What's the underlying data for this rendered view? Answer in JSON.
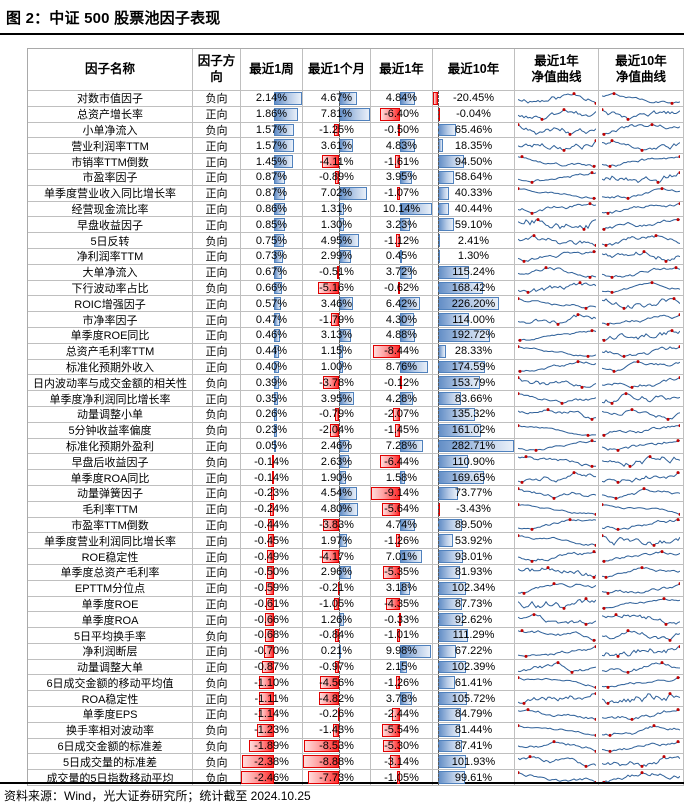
{
  "title": "图 2：中证 500 股票池因子表现",
  "source_note": "资料来源：Wind，光大证券研究所；统计截至 2024.10.25",
  "colors": {
    "bar_positive": "#638EC6",
    "bar_negative": "#FF2B2B",
    "sparkline_line": "#2E6099",
    "sparkline_marker": "#C00000",
    "grid_border": "#BFBFBF"
  },
  "chart_data": {
    "type": "table",
    "columns": [
      "因子名称",
      "因子方向",
      "最近1周",
      "最近1个月",
      "最近1年",
      "最近10年",
      "最近1年净值曲线",
      "最近10年净值曲线"
    ],
    "value_unit": "%",
    "rows": [
      [
        "对数市值因子",
        "负向",
        2.14,
        4.67,
        4.84,
        -20.45
      ],
      [
        "总资产增长率",
        "正向",
        1.86,
        7.81,
        -6.4,
        -0.04
      ],
      [
        "小单净流入",
        "负向",
        1.57,
        -1.25,
        -0.5,
        65.46
      ],
      [
        "营业利润率TTM",
        "正向",
        1.57,
        3.61,
        4.83,
        18.35
      ],
      [
        "市销率TTM倒数",
        "正向",
        1.45,
        -4.11,
        -1.61,
        94.5
      ],
      [
        "市盈率因子",
        "正向",
        0.87,
        -0.89,
        3.95,
        58.64
      ],
      [
        "单季度营业收入同比增长率",
        "正向",
        0.87,
        7.02,
        -1.07,
        40.33
      ],
      [
        "经营现金流比率",
        "正向",
        0.86,
        1.31,
        10.14,
        40.44
      ],
      [
        "早盘收益因子",
        "正向",
        0.85,
        1.3,
        3.23,
        59.1
      ],
      [
        "5日反转",
        "负向",
        0.75,
        4.95,
        -1.12,
        2.41
      ],
      [
        "净利润率TTM",
        "正向",
        0.73,
        2.99,
        0.45,
        1.3
      ],
      [
        "大单净流入",
        "正向",
        0.67,
        -0.51,
        3.72,
        115.24
      ],
      [
        "下行波动率占比",
        "负向",
        0.66,
        -5.16,
        -0.62,
        168.42
      ],
      [
        "ROIC增强因子",
        "正向",
        0.57,
        3.46,
        6.42,
        226.2
      ],
      [
        "市净率因子",
        "正向",
        0.47,
        -1.79,
        4.3,
        114.0
      ],
      [
        "单季度ROE同比",
        "正向",
        0.46,
        3.13,
        4.88,
        192.72
      ],
      [
        "总资产毛利率TTM",
        "正向",
        0.44,
        1.15,
        -8.44,
        28.33
      ],
      [
        "标准化预期外收入",
        "正向",
        0.4,
        1.0,
        8.76,
        174.59
      ],
      [
        "日内波动率与成交金额的相关性",
        "负向",
        0.39,
        -3.78,
        -0.12,
        153.79
      ],
      [
        "单季度净利润同比增长率",
        "正向",
        0.35,
        3.95,
        4.28,
        83.66
      ],
      [
        "动量调整小单",
        "负向",
        0.26,
        -0.79,
        -2.07,
        135.32
      ],
      [
        "5分钟收益率偏度",
        "负向",
        0.23,
        -2.04,
        -1.45,
        161.02
      ],
      [
        "标准化预期外盈利",
        "正向",
        0.05,
        2.46,
        7.28,
        282.71
      ],
      [
        "早盘后收益因子",
        "负向",
        -0.14,
        2.63,
        -6.44,
        110.9
      ],
      [
        "单季度ROA同比",
        "正向",
        -0.14,
        1.9,
        1.58,
        169.65
      ],
      [
        "动量弹簧因子",
        "正向",
        -0.23,
        4.54,
        -9.14,
        73.77
      ],
      [
        "毛利率TTM",
        "正向",
        -0.24,
        4.8,
        -5.64,
        -3.43
      ],
      [
        "市盈率TTM倒数",
        "正向",
        -0.44,
        -3.83,
        4.74,
        89.5
      ],
      [
        "单季度营业利润同比增长率",
        "正向",
        -0.45,
        1.97,
        -1.26,
        53.92
      ],
      [
        "ROE稳定性",
        "正向",
        -0.49,
        -4.17,
        7.01,
        93.01
      ],
      [
        "单季度总资产毛利率",
        "正向",
        -0.5,
        2.96,
        -5.35,
        81.93
      ],
      [
        "EPTTM分位点",
        "正向",
        -0.59,
        -0.21,
        3.18,
        102.34
      ],
      [
        "单季度ROE",
        "正向",
        -0.61,
        -1.05,
        -4.35,
        87.73
      ],
      [
        "单季度ROA",
        "正向",
        -0.66,
        1.26,
        -0.33,
        92.62
      ],
      [
        "5日平均换手率",
        "负向",
        -0.68,
        -0.84,
        -1.01,
        111.29
      ],
      [
        "净利润断层",
        "正向",
        -0.7,
        0.21,
        9.98,
        67.22
      ],
      [
        "动量调整大单",
        "正向",
        -0.87,
        -0.97,
        2.15,
        102.39
      ],
      [
        "6日成交金额的移动平均值",
        "负向",
        -1.1,
        -4.56,
        -1.26,
        61.41
      ],
      [
        "ROA稳定性",
        "正向",
        -1.11,
        -4.82,
        3.78,
        105.72
      ],
      [
        "单季度EPS",
        "正向",
        -1.14,
        -0.26,
        -2.44,
        84.79
      ],
      [
        "换手率相对波动率",
        "负向",
        -1.23,
        -1.43,
        -5.54,
        81.44
      ],
      [
        "6日成交金额的标准差",
        "负向",
        -1.89,
        -8.53,
        -5.3,
        87.41
      ],
      [
        "5日成交量的标准差",
        "负向",
        -2.38,
        -8.88,
        -3.14,
        101.93
      ],
      [
        "成交量的5日指数移动平均",
        "负向",
        -2.46,
        -7.73,
        -1.05,
        99.61
      ]
    ]
  }
}
